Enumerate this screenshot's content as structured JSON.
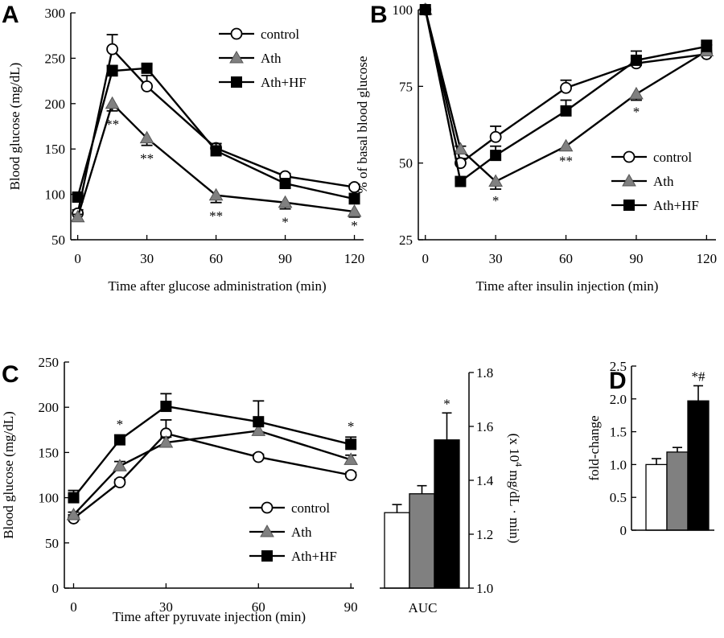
{
  "chart_data": [
    {
      "panel": "A",
      "type": "line",
      "ylabel": "Blood glucose (mg/dL)",
      "xlabel": "Time after glucose administration (min)",
      "xlim": [
        -3,
        124
      ],
      "ylim": [
        50,
        300
      ],
      "xticks": [
        "0",
        "30",
        "60",
        "90",
        "120"
      ],
      "yticks": [
        "50",
        "100",
        "150",
        "200",
        "250",
        "300"
      ],
      "legend": [
        "control",
        "Ath",
        "Ath+HF"
      ],
      "legend_position": "top-right",
      "x": [
        0,
        15,
        30,
        60,
        90,
        120
      ],
      "series": [
        {
          "name": "control",
          "values": [
            79,
            260,
            219,
            151,
            120,
            108
          ],
          "errors": [
            4,
            16,
            12,
            5,
            3,
            3
          ]
        },
        {
          "name": "Ath",
          "values": [
            75,
            200,
            162,
            99,
            91,
            81
          ],
          "errors": [
            3,
            8,
            8,
            8,
            7,
            6
          ]
        },
        {
          "name": "Ath+HF",
          "values": [
            97,
            236,
            239,
            148,
            112,
            95
          ],
          "errors": [
            4,
            6,
            4,
            8,
            5,
            6
          ]
        }
      ],
      "annotations": [
        {
          "x": 15,
          "label": "**"
        },
        {
          "x": 30,
          "label": "**"
        },
        {
          "x": 60,
          "label": "**"
        },
        {
          "x": 90,
          "label": "*"
        },
        {
          "x": 120,
          "label": "*"
        }
      ]
    },
    {
      "panel": "B",
      "type": "line",
      "ylabel": "% of basal blood glucose",
      "xlabel": "Time after insulin injection (min)",
      "xlim": [
        -3,
        124
      ],
      "ylim": [
        25,
        100
      ],
      "xticks": [
        "0",
        "30",
        "60",
        "90",
        "120"
      ],
      "yticks": [
        "25",
        "50",
        "75",
        "100"
      ],
      "legend": [
        "control",
        "Ath",
        "Ath+HF"
      ],
      "legend_position": "bottom-right",
      "x": [
        0,
        15,
        30,
        60,
        90,
        120
      ],
      "series": [
        {
          "name": "control",
          "values": [
            100,
            50,
            58.5,
            74.5,
            82.5,
            85.5
          ],
          "errors": [
            0,
            1.5,
            3.5,
            2.5,
            1.5,
            1
          ]
        },
        {
          "name": "Ath",
          "values": [
            100,
            54.5,
            44,
            55.5,
            72.5,
            86.5
          ],
          "errors": [
            0,
            1,
            2.5,
            1,
            2,
            2
          ]
        },
        {
          "name": "Ath+HF",
          "values": [
            100,
            44,
            52.5,
            67,
            83.5,
            88
          ],
          "errors": [
            0,
            1,
            3,
            3.5,
            3,
            2
          ]
        }
      ],
      "annotations": [
        {
          "x": 30,
          "label": "*"
        },
        {
          "x": 60,
          "label": "**"
        },
        {
          "x": 90,
          "label": "*"
        }
      ]
    },
    {
      "panel": "C",
      "type": "line",
      "ylabel": "Blood glucose (mg/dL)",
      "xlabel": "Time after pyruvate injection (min)",
      "xlim": [
        -3,
        91
      ],
      "ylim": [
        0,
        250
      ],
      "xticks": [
        "0",
        "30",
        "60",
        "90"
      ],
      "yticks": [
        "0",
        "50",
        "100",
        "150",
        "200",
        "250"
      ],
      "legend": [
        "control",
        "Ath",
        "Ath+HF"
      ],
      "legend_position": "bottom-right",
      "x": [
        0,
        15,
        30,
        60,
        90
      ],
      "series": [
        {
          "name": "control",
          "values": [
            77,
            117,
            171,
            145,
            125
          ],
          "errors": [
            4,
            3,
            15,
            3,
            3
          ]
        },
        {
          "name": "Ath",
          "values": [
            81,
            135,
            161,
            174,
            142
          ],
          "errors": [
            3,
            5,
            6,
            10,
            5
          ]
        },
        {
          "name": "Ath+HF",
          "values": [
            100,
            164,
            201,
            184,
            159
          ],
          "errors": [
            8,
            5,
            14,
            23,
            8
          ]
        }
      ],
      "annotations": [
        {
          "x": 15,
          "label": "*"
        },
        {
          "x": 90,
          "label": "*"
        }
      ]
    },
    {
      "panel": "C-AUC",
      "type": "bar",
      "categories": [
        "control",
        "Ath",
        "Ath+HF"
      ],
      "xlabel": "AUC",
      "ylabel": "(x 10",
      "ylabel_sup": "4",
      "ylabel_rest": " mg/dL · min)",
      "ylim": [
        1.0,
        1.8
      ],
      "yticks": [
        "1.0",
        "1.2",
        "1.4",
        "1.6",
        "1.8"
      ],
      "values": [
        1.28,
        1.35,
        1.55
      ],
      "errors": [
        0.03,
        0.03,
        0.1
      ],
      "annotations": [
        {
          "index": 2,
          "label": "*"
        }
      ]
    },
    {
      "panel": "D",
      "type": "bar",
      "categories": [
        "control",
        "Ath",
        "Ath+HF"
      ],
      "ylabel": "fold-change",
      "ylim": [
        0,
        2.5
      ],
      "yticks": [
        "0",
        "0.5",
        "1.0",
        "1.5",
        "2.0",
        "2.5"
      ],
      "values": [
        1.0,
        1.19,
        1.97
      ],
      "errors": [
        0.09,
        0.07,
        0.23
      ],
      "annotations": [
        {
          "index": 2,
          "label": "*#"
        }
      ]
    }
  ],
  "panel_labels": [
    "A",
    "B",
    "C",
    "D"
  ],
  "colors": {
    "control": "#ffffff",
    "Ath": "#808080",
    "Ath+HF": "#000000",
    "axis": "#000000"
  },
  "markers": {
    "control": "open-circle",
    "Ath": "gray-triangle",
    "Ath+HF": "black-square"
  }
}
